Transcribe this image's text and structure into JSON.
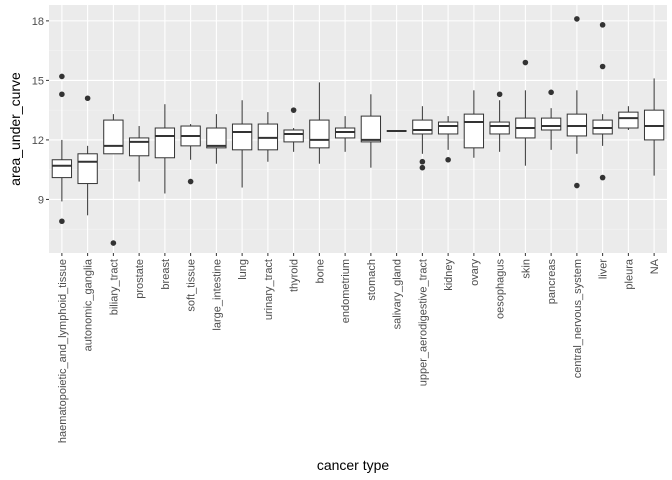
{
  "chart_data": {
    "type": "boxplot",
    "xlabel": "cancer type",
    "ylabel": "area_under_curve",
    "ylim": [
      6.3,
      18.8
    ],
    "yticks": [
      9,
      12,
      15,
      18
    ],
    "grid": true,
    "colors": {
      "panel": "#ebebeb",
      "grid_major": "#ffffff",
      "box_fill": "#ffffff",
      "box_line": "#333333"
    },
    "categories": [
      "haematopoietic_and_lymphoid_tissue",
      "autonomic_ganglia",
      "biliary_tract",
      "prostate",
      "breast",
      "soft_tissue",
      "large_intestine",
      "lung",
      "urinary_tract",
      "thyroid",
      "bone",
      "endometrium",
      "stomach",
      "salivary_gland",
      "upper_aerodigestive_tract",
      "kidney",
      "ovary",
      "oesophagus",
      "skin",
      "pancreas",
      "central_nervous_system",
      "liver",
      "pleura",
      "NA"
    ],
    "boxes": [
      {
        "category": "haematopoietic_and_lymphoid_tissue",
        "min": 8.9,
        "q1": 10.1,
        "median": 10.7,
        "q3": 11.0,
        "max": 12.0,
        "outliers": [
          15.2,
          14.3,
          7.9
        ]
      },
      {
        "category": "autonomic_ganglia",
        "min": 8.2,
        "q1": 9.8,
        "median": 10.9,
        "q3": 11.3,
        "max": 11.7,
        "outliers": [
          14.1
        ]
      },
      {
        "category": "biliary_tract",
        "min": 11.3,
        "q1": 11.3,
        "median": 11.7,
        "q3": 13.0,
        "max": 13.3,
        "outliers": [
          6.8
        ]
      },
      {
        "category": "prostate",
        "min": 9.9,
        "q1": 11.2,
        "median": 11.9,
        "q3": 12.1,
        "max": 12.7,
        "outliers": []
      },
      {
        "category": "breast",
        "min": 9.3,
        "q1": 11.1,
        "median": 12.2,
        "q3": 12.6,
        "max": 13.8,
        "outliers": []
      },
      {
        "category": "soft_tissue",
        "min": 11.0,
        "q1": 11.7,
        "median": 12.2,
        "q3": 12.7,
        "max": 12.8,
        "outliers": [
          9.9
        ]
      },
      {
        "category": "large_intestine",
        "min": 10.8,
        "q1": 11.6,
        "median": 11.7,
        "q3": 12.6,
        "max": 13.3,
        "outliers": []
      },
      {
        "category": "lung",
        "min": 9.6,
        "q1": 11.5,
        "median": 12.4,
        "q3": 12.8,
        "max": 14.0,
        "outliers": []
      },
      {
        "category": "urinary_tract",
        "min": 10.9,
        "q1": 11.5,
        "median": 12.1,
        "q3": 12.8,
        "max": 13.4,
        "outliers": []
      },
      {
        "category": "thyroid",
        "min": 11.4,
        "q1": 11.9,
        "median": 12.3,
        "q3": 12.5,
        "max": 12.6,
        "outliers": [
          13.5
        ]
      },
      {
        "category": "bone",
        "min": 10.8,
        "q1": 11.6,
        "median": 12.0,
        "q3": 13.0,
        "max": 14.9,
        "outliers": []
      },
      {
        "category": "endometrium",
        "min": 11.4,
        "q1": 12.1,
        "median": 12.4,
        "q3": 12.6,
        "max": 13.2,
        "outliers": []
      },
      {
        "category": "stomach",
        "min": 10.6,
        "q1": 11.9,
        "median": 12.0,
        "q3": 13.2,
        "max": 14.3,
        "outliers": []
      },
      {
        "category": "salivary_gland",
        "min": 12.45,
        "q1": 12.45,
        "median": 12.45,
        "q3": 12.45,
        "max": 12.45,
        "outliers": []
      },
      {
        "category": "upper_aerodigestive_tract",
        "min": 11.3,
        "q1": 12.3,
        "median": 12.5,
        "q3": 13.0,
        "max": 13.7,
        "outliers": [
          10.9,
          10.6
        ]
      },
      {
        "category": "kidney",
        "min": 11.5,
        "q1": 12.3,
        "median": 12.7,
        "q3": 12.9,
        "max": 13.2,
        "outliers": [
          11.0
        ]
      },
      {
        "category": "ovary",
        "min": 11.1,
        "q1": 11.6,
        "median": 12.9,
        "q3": 13.3,
        "max": 14.5,
        "outliers": []
      },
      {
        "category": "oesophagus",
        "min": 11.4,
        "q1": 12.3,
        "median": 12.7,
        "q3": 12.9,
        "max": 14.0,
        "outliers": [
          14.3
        ]
      },
      {
        "category": "skin",
        "min": 10.7,
        "q1": 12.1,
        "median": 12.6,
        "q3": 13.1,
        "max": 14.5,
        "outliers": [
          15.9
        ]
      },
      {
        "category": "pancreas",
        "min": 11.5,
        "q1": 12.5,
        "median": 12.7,
        "q3": 13.1,
        "max": 13.6,
        "outliers": [
          14.4
        ]
      },
      {
        "category": "central_nervous_system",
        "min": 11.3,
        "q1": 12.2,
        "median": 12.7,
        "q3": 13.3,
        "max": 14.5,
        "outliers": [
          18.1,
          9.7
        ]
      },
      {
        "category": "liver",
        "min": 11.7,
        "q1": 12.3,
        "median": 12.6,
        "q3": 13.0,
        "max": 13.3,
        "outliers": [
          17.8,
          15.7,
          10.1
        ]
      },
      {
        "category": "pleura",
        "min": 12.5,
        "q1": 12.6,
        "median": 13.1,
        "q3": 13.4,
        "max": 13.7,
        "outliers": []
      },
      {
        "category": "NA",
        "min": 10.2,
        "q1": 12.0,
        "median": 12.7,
        "q3": 13.5,
        "max": 15.1,
        "outliers": []
      }
    ]
  }
}
